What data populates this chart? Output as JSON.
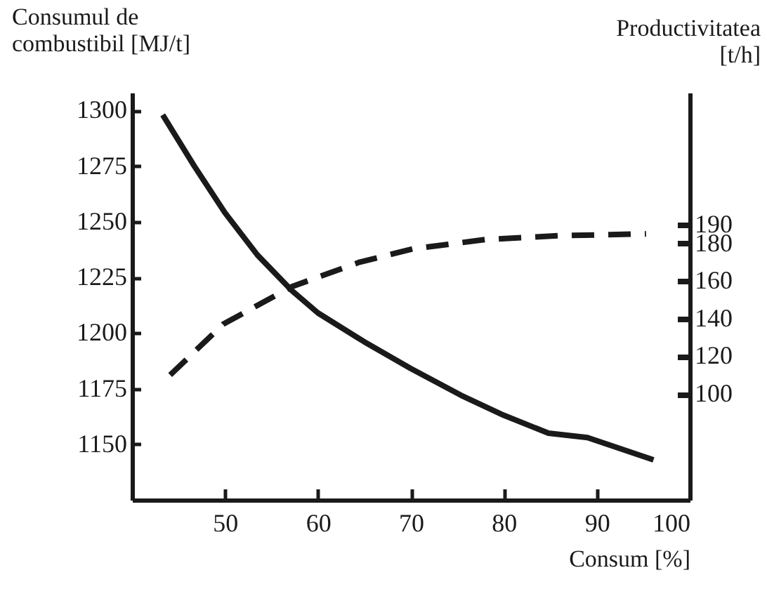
{
  "chart_data": {
    "type": "line",
    "xlabel": "Consum [%]",
    "ylabel": "Consumul de\ncombustibil [MJ/t]",
    "y2label": "Productivitatea\n[t/h]",
    "xlim": [
      40,
      100
    ],
    "xticks": [
      50,
      60,
      70,
      80,
      90,
      100
    ],
    "ylim": [
      1125,
      1308
    ],
    "yticks": [
      1150,
      1175,
      1200,
      1225,
      1250,
      1275,
      1300
    ],
    "y2lim": [
      43.7,
      260
    ],
    "y2ticks": [
      100,
      120,
      140,
      160,
      180,
      190
    ],
    "grid": false,
    "marker": "none",
    "series": [
      {
        "color": "#1a1a1a",
        "line_style": "solid",
        "x": [
          43.3,
          46.7,
          50,
          53.5,
          57.2,
          60,
          65,
          70,
          75.4,
          80,
          84.8,
          89,
          96.1
        ],
        "values": [
          1298,
          1275,
          1254,
          1235,
          1219,
          1209,
          1196,
          1184,
          1172,
          1163,
          1155,
          1153,
          1143
        ]
      },
      {
        "color": "#1a1a1a",
        "line_style": "dashed",
        "axis": "y2",
        "x": [
          44.1,
          49.8,
          57.2,
          64.5,
          70.2,
          78,
          85.8,
          95.3
        ],
        "values": [
          110,
          137,
          157,
          170,
          177,
          182,
          184,
          185
        ]
      }
    ]
  }
}
